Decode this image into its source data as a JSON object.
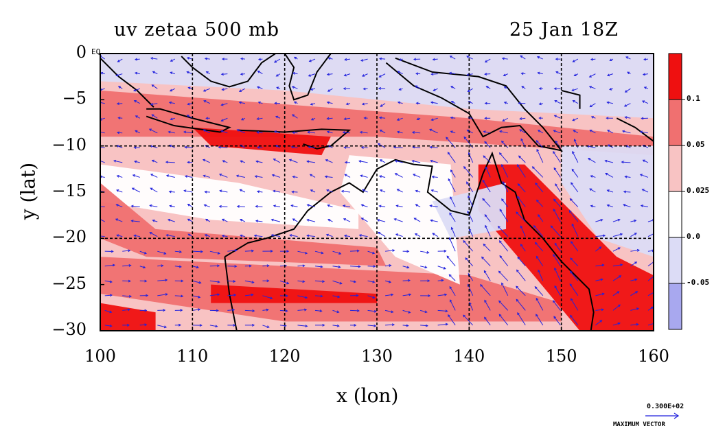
{
  "title_left": "uv zetaa 500 mb",
  "title_right": "25 Jan 18Z",
  "xlabel": "x (lon)",
  "ylabel": "y (lat)",
  "eq_label": "EQ",
  "x_ticks": [
    "100",
    "110",
    "120",
    "130",
    "140",
    "150",
    "160"
  ],
  "y_ticks": [
    "0",
    "−5",
    "−10",
    "−15",
    "−20",
    "−25",
    "−30"
  ],
  "colorbar_ticks": [
    "0.1",
    "0.05",
    "0.025",
    "0.0",
    "-0.05"
  ],
  "colorbar_colors": [
    "#ef1010",
    "#f07070",
    "#f8c3c3",
    "#ffffff",
    "#dcdcf6",
    "#a8a8ef"
  ],
  "reference_vector": {
    "value": "0.300E+02",
    "label": "MAXIMUM VECTOR"
  },
  "map": {
    "lon_range": [
      100,
      160
    ],
    "lat_range": [
      -30,
      0
    ],
    "grid_lons": [
      110,
      120,
      130,
      140,
      150
    ],
    "grid_lats": [
      -10,
      -20
    ],
    "vector_color": "#2222dd",
    "coast_color": "#000000",
    "contour_color": "#dd0000"
  }
}
